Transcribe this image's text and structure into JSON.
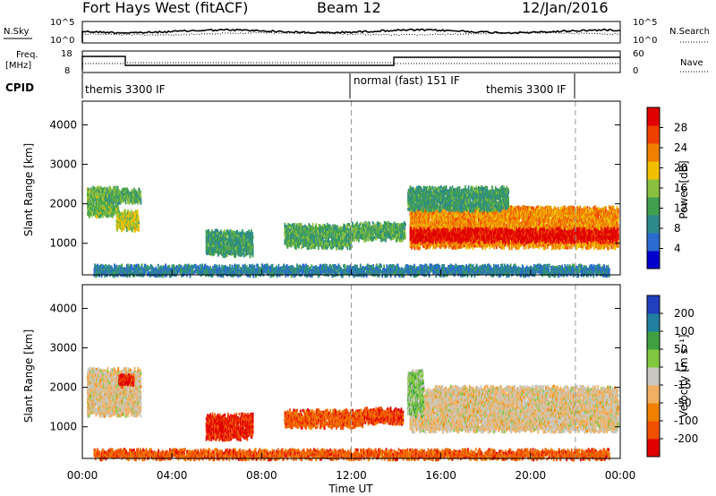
{
  "header": {
    "station": "Fort Hays West (fitACF)",
    "beam": "Beam 12",
    "date": "12/Jan/2016"
  },
  "noise_panel": {
    "left_label": "N.Sky",
    "right_label": "N.Search",
    "left_ticks": [
      "10^5",
      "10^0"
    ],
    "right_ticks": [
      "10^5",
      "10^0"
    ]
  },
  "freq_panel": {
    "left_label_1": "Freq.",
    "left_label_2": "[MHz]",
    "right_label": "Nave",
    "left_ticks": [
      "18",
      "8"
    ],
    "right_ticks": [
      "60",
      "0"
    ]
  },
  "cpid_panel": {
    "label": "CPID",
    "segments": [
      {
        "text": "themis 3300 IF",
        "start_hour": 0
      },
      {
        "text": "normal (fast) 151 IF",
        "start_hour": 12
      },
      {
        "text": "themis 3300 IF",
        "start_hour": 22
      }
    ]
  },
  "colors": {
    "power": [
      "#0000cc",
      "#2a6bd0",
      "#2d8a8a",
      "#40a050",
      "#8ac040",
      "#f0c000",
      "#f08000",
      "#f04000",
      "#e00000"
    ],
    "velocity": [
      "#e00000",
      "#f05000",
      "#f08000",
      "#f0b060",
      "#c8c8c0",
      "#80c840",
      "#40a040",
      "#2080a0",
      "#2040c0"
    ]
  },
  "chart_data": [
    {
      "type": "heatmap",
      "name": "power",
      "ylabel": "Slant Range [km]",
      "y_ticks": [
        "1000",
        "2000",
        "3000",
        "4000"
      ],
      "ylim": [
        200,
        4600
      ],
      "xlim": [
        0,
        24
      ],
      "colorbar_label": "Power [dB]",
      "colorbar_ticks": [
        "4",
        "8",
        "12",
        "16",
        "20",
        "24",
        "28"
      ],
      "colorbar_range": [
        0,
        32
      ],
      "dashed_lines_hours": [
        12,
        22
      ],
      "regions": [
        {
          "t0": 0.2,
          "t1": 1.6,
          "r0": 1700,
          "r1": 2400,
          "level": 0.45
        },
        {
          "t0": 1.5,
          "t1": 2.5,
          "r0": 1350,
          "r1": 1800,
          "level": 0.55
        },
        {
          "t0": 1.0,
          "t1": 2.6,
          "r0": 2050,
          "r1": 2350,
          "level": 0.4
        },
        {
          "t0": 5.5,
          "t1": 7.6,
          "r0": 700,
          "r1": 1300,
          "level": 0.35
        },
        {
          "t0": 9.0,
          "t1": 12.0,
          "r0": 900,
          "r1": 1450,
          "level": 0.4
        },
        {
          "t0": 12.0,
          "t1": 14.4,
          "r0": 1100,
          "r1": 1500,
          "level": 0.4
        },
        {
          "t0": 14.6,
          "t1": 23.9,
          "r0": 900,
          "r1": 1900,
          "level": 0.7
        },
        {
          "t0": 14.6,
          "t1": 23.9,
          "r0": 1050,
          "r1": 1350,
          "level": 0.95
        },
        {
          "t0": 14.5,
          "t1": 19.0,
          "r0": 1850,
          "r1": 2400,
          "level": 0.35
        },
        {
          "t0": 0.5,
          "t1": 23.5,
          "r0": 200,
          "r1": 420,
          "level": 0.25
        }
      ]
    },
    {
      "type": "heatmap",
      "name": "velocity",
      "ylabel": "Slant Range [km]",
      "y_ticks": [
        "1000",
        "2000",
        "3000",
        "4000"
      ],
      "ylim": [
        200,
        4600
      ],
      "xlim": [
        0,
        24
      ],
      "xlabel": "Time UT",
      "x_ticks": [
        "00:00",
        "04:00",
        "08:00",
        "12:00",
        "16:00",
        "20:00",
        "00:00"
      ],
      "colorbar_label": "Velocity [m s⁻¹]",
      "colorbar_ticks": [
        "-200",
        "-100",
        "-50",
        "-15",
        "15",
        "50",
        "100",
        "200"
      ],
      "dashed_lines_hours": [
        12,
        22
      ],
      "regions": [
        {
          "t0": 0.2,
          "t1": 2.6,
          "r0": 1300,
          "r1": 2450,
          "level": 0.45
        },
        {
          "t0": 1.6,
          "t1": 2.3,
          "r0": 2050,
          "r1": 2300,
          "level": 0.1
        },
        {
          "t0": 5.5,
          "t1": 7.6,
          "r0": 700,
          "r1": 1300,
          "level": 0.1
        },
        {
          "t0": 9.0,
          "t1": 12.5,
          "r0": 1000,
          "r1": 1400,
          "level": 0.2
        },
        {
          "t0": 12.5,
          "t1": 14.3,
          "r0": 1100,
          "r1": 1450,
          "level": 0.15
        },
        {
          "t0": 14.6,
          "t1": 23.9,
          "r0": 900,
          "r1": 2000,
          "level": 0.45
        },
        {
          "t0": 14.5,
          "t1": 15.2,
          "r0": 1300,
          "r1": 2400,
          "level": 0.62
        },
        {
          "t0": 0.5,
          "t1": 23.5,
          "r0": 200,
          "r1": 400,
          "level": 0.2
        }
      ]
    }
  ]
}
